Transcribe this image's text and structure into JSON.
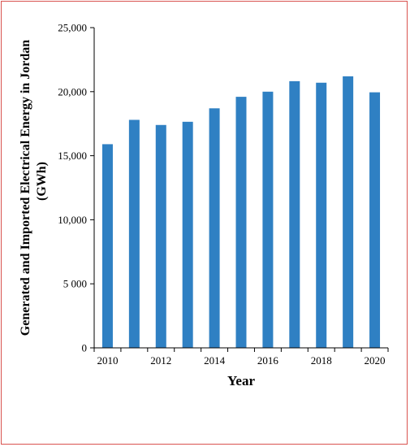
{
  "chart_data": {
    "type": "bar",
    "categories": [
      "2010",
      "2011",
      "2012",
      "2013",
      "2014",
      "2015",
      "2016",
      "2017",
      "2018",
      "2019",
      "2020"
    ],
    "values": [
      15900,
      17800,
      17400,
      17650,
      18700,
      19600,
      20000,
      20820,
      20700,
      21200,
      19950
    ],
    "xlabel": "Year",
    "ylabel_line1": "Generated and Imported Electrical Energy in Jordan",
    "ylabel_line2": "(GWh)",
    "ylim": [
      0,
      25000
    ],
    "y_ticks": [
      0,
      5000,
      10000,
      15000,
      20000,
      25000
    ],
    "y_tick_labels": [
      "0",
      "5 000",
      "10,000",
      "15,000",
      "20,000",
      "25,000"
    ],
    "x_tick_labels": [
      "2010",
      "2012",
      "2014",
      "2016",
      "2018",
      "2020"
    ],
    "bar_color": "#2f80c3",
    "grid": false,
    "legend": "none"
  },
  "frame_color": "#d9534f"
}
